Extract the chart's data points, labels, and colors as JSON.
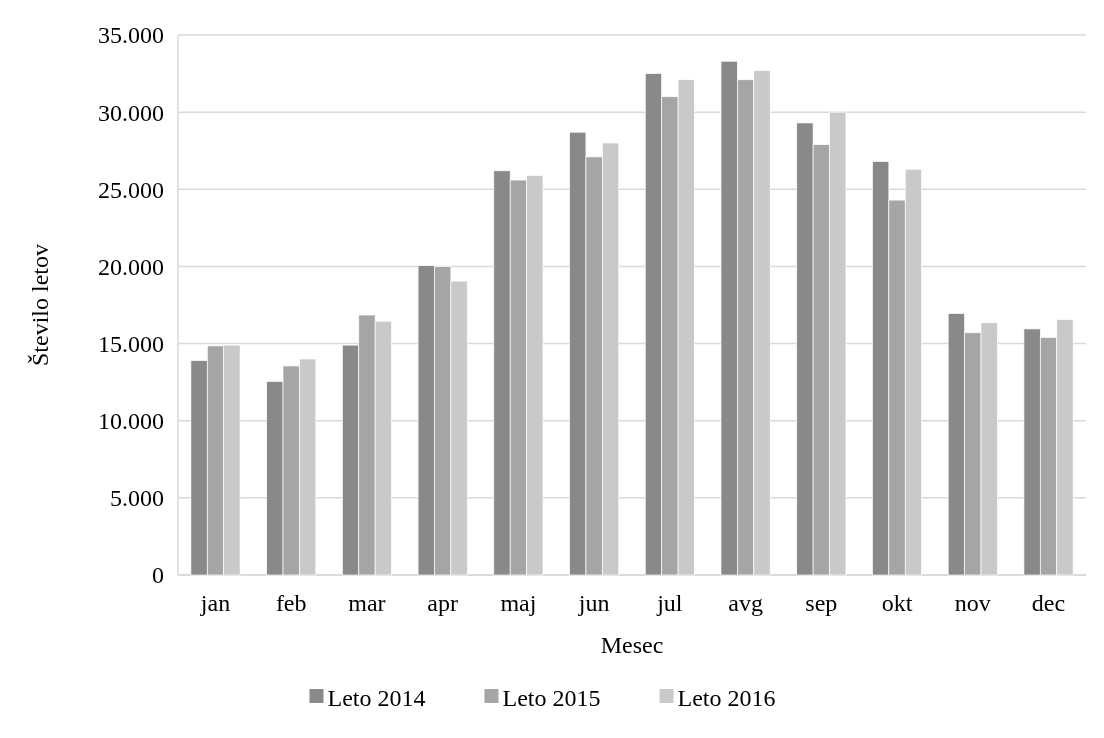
{
  "chart_data": {
    "type": "bar",
    "xlabel": "Mesec",
    "ylabel": "Število letov",
    "categories": [
      "jan",
      "feb",
      "mar",
      "apr",
      "maj",
      "jun",
      "jul",
      "avg",
      "sep",
      "okt",
      "nov",
      "dec"
    ],
    "series": [
      {
        "name": "Leto 2014",
        "color": "#898989",
        "values": [
          13900,
          12550,
          14900,
          20050,
          26200,
          28700,
          32500,
          33300,
          29300,
          26800,
          16950,
          15950
        ]
      },
      {
        "name": "Leto 2015",
        "color": "#a5a5a5",
        "values": [
          14850,
          13550,
          16850,
          20000,
          25600,
          27100,
          31000,
          32100,
          27900,
          24300,
          15700,
          15400
        ]
      },
      {
        "name": "Leto 2016",
        "color": "#c9c9c9",
        "values": [
          14900,
          14000,
          16450,
          19050,
          25900,
          28000,
          32100,
          32700,
          30000,
          26300,
          16350,
          16550
        ]
      }
    ],
    "ylim": [
      0,
      35000
    ],
    "yticks": [
      0,
      {
        "value": 5000,
        "label": "5.000"
      },
      {
        "value": 10000,
        "label": "10.000"
      },
      {
        "value": 15000,
        "label": "15.000"
      },
      {
        "value": 20000,
        "label": "20.000"
      },
      {
        "value": 25000,
        "label": "25.000"
      },
      {
        "value": 30000,
        "label": "30.000"
      },
      {
        "value": 35000,
        "label": "35.000"
      }
    ],
    "grid": "y",
    "legend": "bottom"
  }
}
